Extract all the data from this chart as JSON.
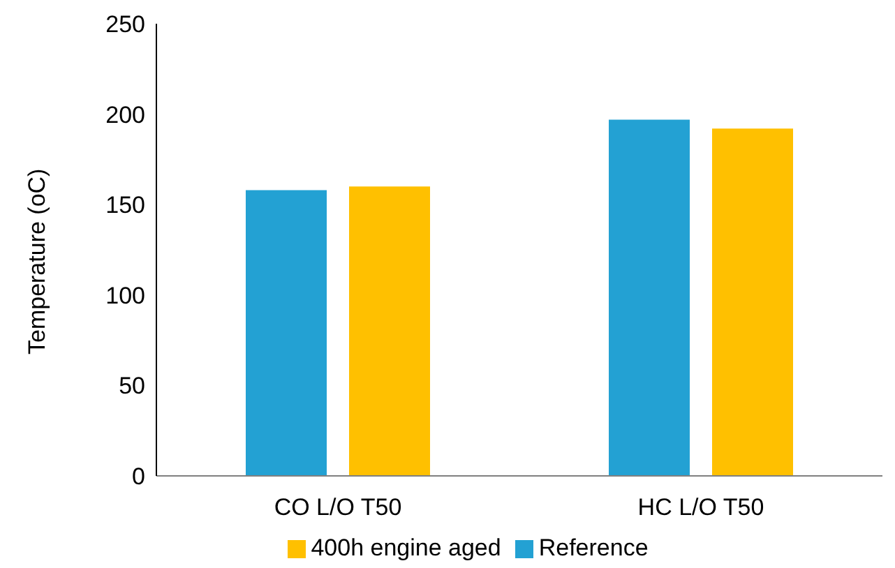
{
  "chart_data": {
    "type": "bar",
    "ylabel": "Temperature (oC)",
    "categories": [
      "CO L/O T50",
      "HC L/O T50"
    ],
    "series": [
      {
        "name": "Reference",
        "color": "#23a1d3",
        "values": [
          158,
          197
        ]
      },
      {
        "name": "400h engine aged",
        "color": "#ffc000",
        "values": [
          160,
          192
        ]
      }
    ],
    "ylim": [
      0,
      250
    ],
    "yticks": [
      0,
      50,
      100,
      150,
      200,
      250
    ],
    "grid": false,
    "legend": "bottom"
  }
}
